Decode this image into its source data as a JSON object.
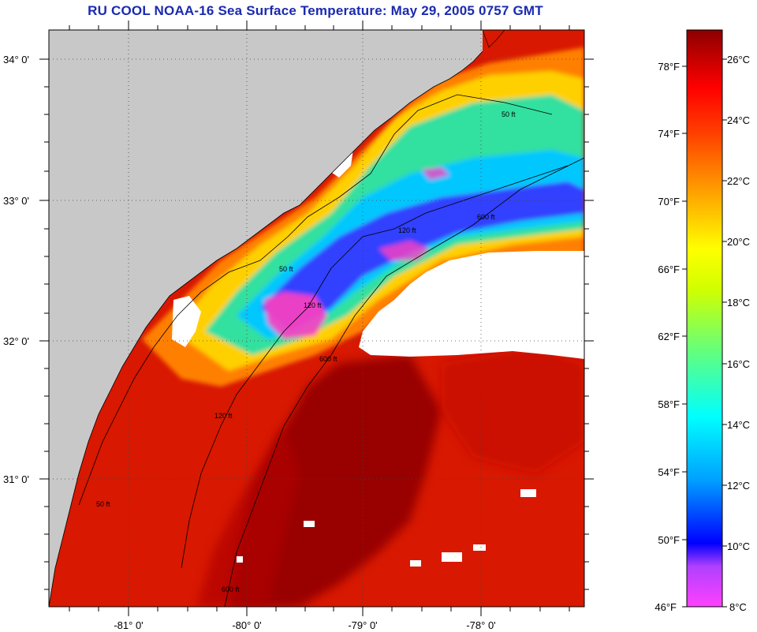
{
  "title": "RU COOL  NOAA-16  Sea Surface Temperature:  May 29, 2005 0757 GMT",
  "map": {
    "lat_labels": [
      "34° 0'",
      "33° 0'",
      "32° 0'",
      "31° 0'"
    ],
    "lon_labels": [
      "-81° 0'",
      "-80° 0'",
      "-79° 0'",
      "-78° 0'"
    ],
    "contours": {
      "label_50ft": "50 ft",
      "label_120ft": "120 ft",
      "label_600ft": "600 ft"
    },
    "colors": {
      "land": "#c8c8c8",
      "cloud": "#ffffff",
      "warm_core": "#990000"
    }
  },
  "colorbar": {
    "f_labels": [
      "78°F",
      "74°F",
      "70°F",
      "66°F",
      "62°F",
      "58°F",
      "54°F",
      "50°F",
      "46°F"
    ],
    "c_labels": [
      "26°C",
      "24°C",
      "22°C",
      "20°C",
      "18°C",
      "16°C",
      "14°C",
      "12°C",
      "10°C",
      "8°C"
    ],
    "range_c": [
      8,
      27
    ]
  }
}
